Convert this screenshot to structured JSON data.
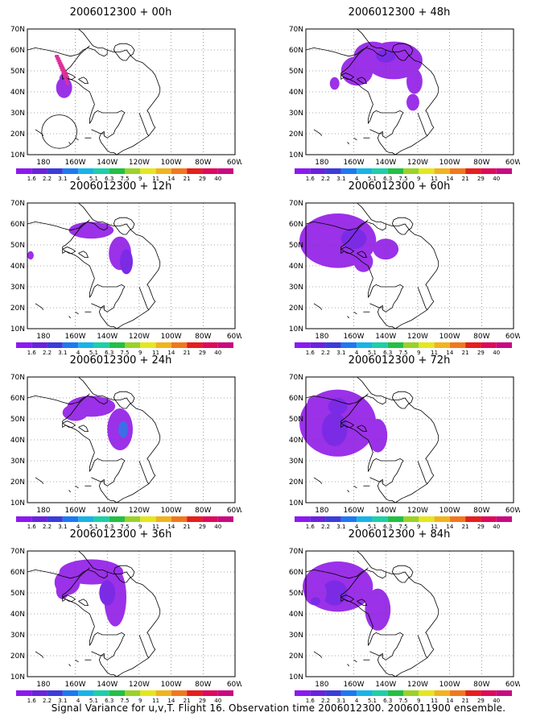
{
  "panels": [
    {
      "title": "2006012300 + 00h"
    },
    {
      "title": "2006012300 + 48h"
    },
    {
      "title": "2006012300 + 12h"
    },
    {
      "title": "2006012300 + 60h"
    },
    {
      "title": "2006012300 + 24h"
    },
    {
      "title": "2006012300 + 72h"
    },
    {
      "title": "2006012300 + 36h"
    },
    {
      "title": "2006012300 + 84h"
    }
  ],
  "map_axes": {
    "lat_labels": [
      "70N",
      "60N",
      "50N",
      "40N",
      "30N",
      "20N",
      "10N"
    ],
    "lon_labels": [
      "180",
      "160W",
      "140W",
      "120W",
      "100W",
      "80W",
      "60W"
    ],
    "lat_range": [
      10,
      70
    ],
    "lon_range": [
      "170E",
      "60W"
    ],
    "grid": "dotted"
  },
  "colorbar": {
    "labels": [
      "1.6",
      "2.2",
      "3.1",
      "4",
      "5.1",
      "6.3",
      "7.5",
      "9",
      "11",
      "14",
      "21",
      "29",
      "40"
    ],
    "colors": [
      "#8c19f0",
      "#6a22dc",
      "#3c3cd8",
      "#1e78f0",
      "#18b4e6",
      "#1ecfa8",
      "#22c046",
      "#9ad228",
      "#e6e61e",
      "#f0b41e",
      "#f0781e",
      "#e61e1e",
      "#dc0a5a",
      "#c80a82"
    ]
  },
  "shading": {
    "low": "#9b31e8",
    "mid": "#7b2be6",
    "high": "#5a3ce0",
    "peak": "#3c6ee8"
  },
  "observation_marker_color": "#e0309a",
  "footer": "Signal Variance for u,v,T. Flight 16. Observation time 2006012300. 2006011900 ensemble."
}
